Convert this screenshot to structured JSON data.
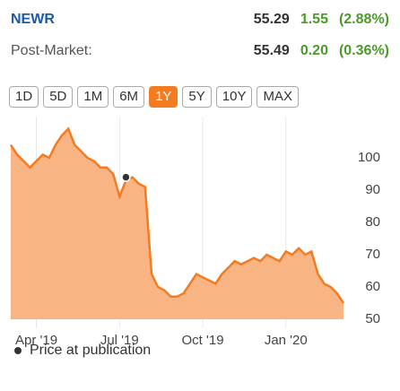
{
  "header": {
    "symbol": "NEWR",
    "price": "55.29",
    "change": "1.55",
    "change_pct": "(2.88%)",
    "post_label": "Post-Market:",
    "post_price": "55.49",
    "post_change": "0.20",
    "post_change_pct": "(0.36%)"
  },
  "ranges": {
    "buttons": [
      "1D",
      "5D",
      "1M",
      "6M",
      "1Y",
      "5Y",
      "10Y",
      "MAX"
    ],
    "active": "1Y"
  },
  "chart_data": {
    "type": "area",
    "categories": [
      null,
      null,
      null,
      null,
      "Apr '19",
      null,
      null,
      null,
      null,
      null,
      null,
      null,
      null,
      null,
      null,
      null,
      null,
      "Jul '19",
      null,
      null,
      null,
      null,
      null,
      null,
      null,
      null,
      null,
      null,
      null,
      null,
      "Oct '19",
      null,
      null,
      null,
      null,
      null,
      null,
      null,
      null,
      null,
      null,
      null,
      null,
      "Jan '20",
      null,
      null,
      null,
      null,
      null,
      null,
      null,
      null,
      null
    ],
    "series": [
      {
        "name": "Price",
        "color": "#f47b20",
        "fill": "#f8b483",
        "values": [
          104,
          101,
          99,
          97,
          99,
          101,
          100,
          104,
          107,
          109,
          104,
          102,
          100,
          99,
          97,
          97,
          95,
          88,
          93,
          94,
          92,
          91,
          64,
          60,
          59,
          57,
          57,
          58,
          61,
          64,
          63,
          62,
          61,
          64,
          66,
          68,
          67,
          68,
          69,
          68,
          70,
          69,
          68,
          71,
          70,
          72,
          70,
          71,
          64,
          61,
          60,
          58,
          55
        ]
      },
      {
        "name": "Price at publication",
        "color": "#333333",
        "values": [
          null,
          null,
          null,
          null,
          null,
          null,
          null,
          null,
          null,
          null,
          null,
          null,
          null,
          null,
          null,
          null,
          null,
          null,
          94,
          null,
          null,
          null,
          null,
          null,
          null,
          null,
          null,
          null,
          null,
          null,
          null,
          null,
          null,
          null,
          null,
          null,
          null,
          null,
          null,
          null,
          null,
          null,
          null,
          null,
          null,
          null,
          null,
          null,
          null,
          null,
          null,
          null,
          null
        ]
      }
    ],
    "ylim": [
      50,
      110
    ],
    "yticks": [
      50,
      60,
      70,
      80,
      90,
      100
    ]
  }
}
